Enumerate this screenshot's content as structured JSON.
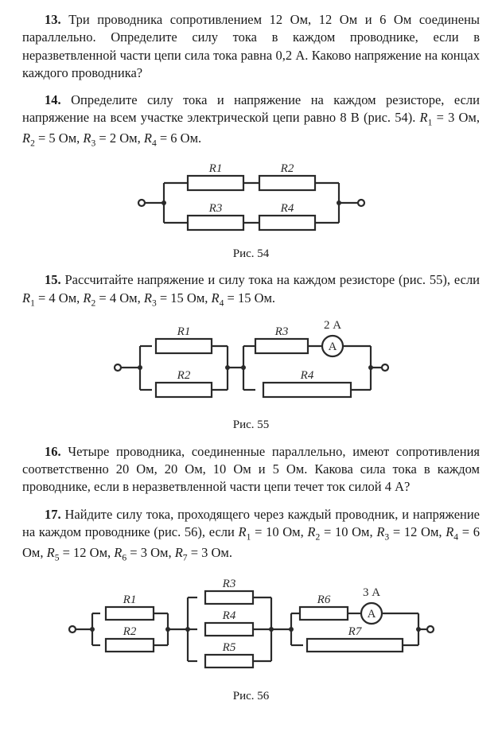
{
  "problems": {
    "p13": {
      "num": "13.",
      "text": "Три проводника сопротивлением 12 Ом, 12 Ом и 6 Ом соединены параллельно. Определите силу тока в каждом проводнике, если в неразветвленной части цепи сила тока равна 0,2 А. Каково напряжение на концах каждого проводника?"
    },
    "p14": {
      "num": "14.",
      "text_a": "Определите силу тока и напряжение на каждом резисторе, если напряжение на всем участке электрической цепи равно 8 В (рис. 54). ",
      "r1": "R",
      "r1s": "1",
      "r1v": " = 3 Ом, ",
      "r2": "R",
      "r2s": "2",
      "r2v": " = 5 Ом, ",
      "r3": "R",
      "r3s": "3",
      "r3v": " = 2 Ом, ",
      "r4": "R",
      "r4s": "4",
      "r4v": " = 6 Ом.",
      "caption": "Рис. 54",
      "circuit": {
        "R1": "R1",
        "R2": "R2",
        "R3": "R3",
        "R4": "R4",
        "stroke": "#2a2a2a",
        "stroke_width": 2.2,
        "res_w": 70,
        "res_h": 18
      }
    },
    "p15": {
      "num": "15.",
      "text_a": "Рассчитайте напряжение и силу тока на каждом резисторе (рис. 55), если ",
      "r1": "R",
      "r1s": "1",
      "r1v": " = 4 Ом, ",
      "r2": "R",
      "r2s": "2",
      "r2v": " = 4 Ом, ",
      "r3": "R",
      "r3s": "3",
      "r3v": " = 15 Ом, ",
      "r4": "R",
      "r4s": "4",
      "r4v": " = 15 Ом.",
      "caption": "Рис. 55",
      "circuit": {
        "R1": "R1",
        "R2": "R2",
        "R3": "R3",
        "R4": "R4",
        "ammeter": "A",
        "amm_value": "2 А",
        "stroke": "#2a2a2a",
        "stroke_width": 2.2,
        "res_w": 70,
        "res_h": 18
      }
    },
    "p16": {
      "num": "16.",
      "text": "Четыре проводника, соединенные параллельно, имеют сопротивления соответственно 20 Ом, 20 Ом, 10 Ом и 5 Ом. Какова сила тока в каждом проводнике, если в неразветвленной части цепи течет ток силой 4 А?"
    },
    "p17": {
      "num": "17.",
      "text_a": "Найдите силу тока, проходящего через каждый проводник, и напряжение на каждом проводнике (рис. 56), если ",
      "r1": "R",
      "r1s": "1",
      "r1v": " = 10 Ом, ",
      "r2": "R",
      "r2s": "2",
      "r2v": " = 10 Ом, ",
      "r3": "R",
      "r3s": "3",
      "r3v": " = 12 Ом, ",
      "r4": "R",
      "r4s": "4",
      "r4v": " = 6 Ом, ",
      "r5": "R",
      "r5s": "5",
      "r5v": " = 12 Ом, ",
      "r6": "R",
      "r6s": "6",
      "r6v": " = 3 Ом, ",
      "r7": "R",
      "r7s": "7",
      "r7v": " = 3 Ом.",
      "caption": "Рис. 56",
      "circuit": {
        "R1": "R1",
        "R2": "R2",
        "R3": "R3",
        "R4": "R4",
        "R5": "R5",
        "R6": "R6",
        "R7": "R7",
        "ammeter": "A",
        "amm_value": "3 А",
        "stroke": "#2a2a2a",
        "stroke_width": 2.2,
        "res_w": 60,
        "res_h": 16
      }
    }
  }
}
